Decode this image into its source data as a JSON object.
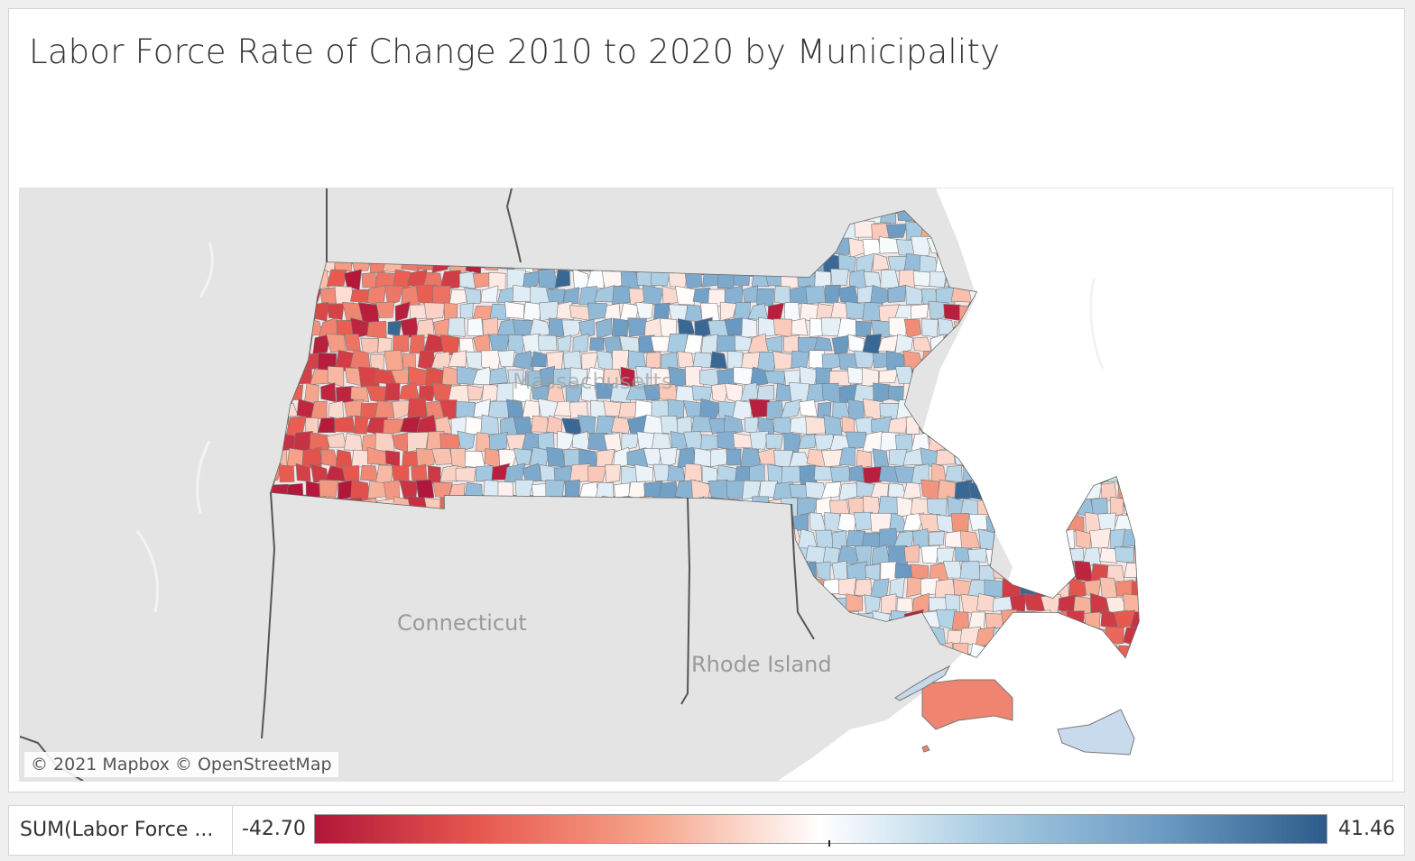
{
  "title": "Labor Force Rate of Change 2010 to 2020 by Municipality",
  "map": {
    "state_labels": [
      "Massachusetts",
      "Connecticut",
      "Rhode Island"
    ],
    "attribution": "© 2021 Mapbox © OpenStreetMap",
    "basemap_color": "#e3e3e3",
    "water_color": "#ffffff"
  },
  "legend": {
    "field": "SUM(Labor Force ...",
    "min_label": "-42.70",
    "max_label": "41.46",
    "min_value": -42.7,
    "max_value": 41.46,
    "gradient": [
      "#b2163a",
      "#e85a4f",
      "#f6a68c",
      "#ffffff",
      "#a7cbe2",
      "#6d9cc4",
      "#2e5c8a"
    ]
  }
}
